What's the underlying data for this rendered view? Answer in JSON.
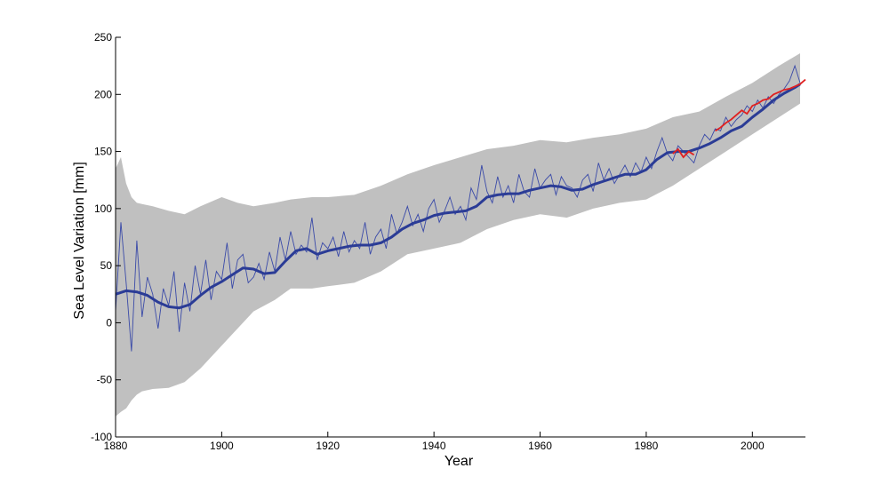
{
  "chart_data": {
    "type": "line",
    "xlabel": "Year",
    "ylabel": "Sea Level Variation [mm]",
    "xlim": [
      1880,
      2010
    ],
    "ylim": [
      -100,
      250
    ],
    "x_ticks": [
      1880,
      1900,
      1920,
      1940,
      1960,
      1980,
      2000
    ],
    "y_ticks": [
      -100,
      -50,
      0,
      50,
      100,
      150,
      200,
      250
    ],
    "grid": false,
    "legend": "none",
    "colors": {
      "band": "#c0c0c0",
      "smoothed": "#2b3c96",
      "annual": "#3a4aa8",
      "satellite": "#e02020"
    },
    "series": [
      {
        "role": "uncertainty-band",
        "x": [
          1880,
          1881,
          1882,
          1883,
          1884,
          1885,
          1887,
          1890,
          1893,
          1896,
          1900,
          1903,
          1906,
          1910,
          1913,
          1917,
          1920,
          1925,
          1930,
          1935,
          1940,
          1945,
          1950,
          1955,
          1960,
          1965,
          1970,
          1975,
          1980,
          1985,
          1990,
          1995,
          2000,
          2005,
          2009
        ],
        "lower": [
          -82,
          -78,
          -75,
          -68,
          -63,
          -60,
          -58,
          -57,
          -52,
          -40,
          -20,
          -5,
          10,
          20,
          30,
          30,
          32,
          35,
          45,
          60,
          65,
          70,
          82,
          90,
          95,
          92,
          100,
          105,
          108,
          120,
          135,
          150,
          165,
          180,
          192
        ],
        "upper": [
          135,
          145,
          122,
          110,
          105,
          104,
          102,
          98,
          95,
          102,
          110,
          105,
          102,
          105,
          108,
          110,
          110,
          112,
          120,
          130,
          138,
          145,
          152,
          155,
          160,
          158,
          162,
          165,
          170,
          180,
          185,
          198,
          210,
          225,
          236
        ]
      },
      {
        "role": "smoothed",
        "x": [
          1880,
          1882,
          1884,
          1886,
          1888,
          1890,
          1892,
          1894,
          1896,
          1898,
          1900,
          1902,
          1904,
          1906,
          1908,
          1910,
          1912,
          1914,
          1916,
          1918,
          1920,
          1922,
          1924,
          1926,
          1928,
          1930,
          1932,
          1934,
          1936,
          1938,
          1940,
          1942,
          1944,
          1946,
          1948,
          1950,
          1952,
          1954,
          1956,
          1958,
          1960,
          1962,
          1964,
          1966,
          1968,
          1970,
          1972,
          1974,
          1976,
          1978,
          1980,
          1982,
          1984,
          1986,
          1988,
          1990,
          1992,
          1994,
          1996,
          1998,
          2000,
          2002,
          2004,
          2006,
          2008,
          2009
        ],
        "values": [
          25,
          28,
          27,
          24,
          18,
          14,
          13,
          16,
          24,
          31,
          36,
          42,
          48,
          47,
          43,
          44,
          54,
          63,
          65,
          60,
          63,
          65,
          67,
          68,
          68,
          70,
          75,
          82,
          87,
          90,
          94,
          96,
          97,
          98,
          102,
          110,
          112,
          113,
          113,
          116,
          118,
          120,
          119,
          116,
          117,
          121,
          124,
          127,
          130,
          130,
          134,
          143,
          149,
          150,
          150,
          153,
          157,
          162,
          168,
          172,
          180,
          187,
          195,
          201,
          206,
          209
        ]
      },
      {
        "role": "annual",
        "x": [
          1880,
          1881,
          1882,
          1883,
          1884,
          1885,
          1886,
          1887,
          1888,
          1889,
          1890,
          1891,
          1892,
          1893,
          1894,
          1895,
          1896,
          1897,
          1898,
          1899,
          1900,
          1901,
          1902,
          1903,
          1904,
          1905,
          1906,
          1907,
          1908,
          1909,
          1910,
          1911,
          1912,
          1913,
          1914,
          1915,
          1916,
          1917,
          1918,
          1919,
          1920,
          1921,
          1922,
          1923,
          1924,
          1925,
          1926,
          1927,
          1928,
          1929,
          1930,
          1931,
          1932,
          1933,
          1934,
          1935,
          1936,
          1937,
          1938,
          1939,
          1940,
          1941,
          1942,
          1943,
          1944,
          1945,
          1946,
          1947,
          1948,
          1949,
          1950,
          1951,
          1952,
          1953,
          1954,
          1955,
          1956,
          1957,
          1958,
          1959,
          1960,
          1961,
          1962,
          1963,
          1964,
          1965,
          1966,
          1967,
          1968,
          1969,
          1970,
          1971,
          1972,
          1973,
          1974,
          1975,
          1976,
          1977,
          1978,
          1979,
          1980,
          1981,
          1982,
          1983,
          1984,
          1985,
          1986,
          1987,
          1988,
          1989,
          1990,
          1991,
          1992,
          1993,
          1994,
          1995,
          1996,
          1997,
          1998,
          1999,
          2000,
          2001,
          2002,
          2003,
          2004,
          2005,
          2006,
          2007,
          2008,
          2009
        ],
        "values": [
          10,
          88,
          35,
          -25,
          72,
          5,
          40,
          25,
          -5,
          30,
          15,
          45,
          -8,
          35,
          10,
          50,
          25,
          55,
          20,
          45,
          38,
          70,
          30,
          55,
          60,
          35,
          40,
          52,
          38,
          62,
          45,
          75,
          55,
          80,
          60,
          68,
          62,
          92,
          55,
          70,
          65,
          75,
          58,
          80,
          62,
          72,
          65,
          88,
          60,
          75,
          82,
          65,
          95,
          78,
          88,
          102,
          85,
          95,
          80,
          100,
          108,
          88,
          98,
          110,
          95,
          102,
          90,
          118,
          108,
          138,
          115,
          105,
          128,
          110,
          120,
          105,
          130,
          115,
          110,
          135,
          118,
          125,
          130,
          112,
          128,
          120,
          118,
          110,
          125,
          130,
          115,
          140,
          125,
          135,
          122,
          130,
          138,
          128,
          140,
          132,
          145,
          135,
          150,
          162,
          148,
          142,
          155,
          150,
          145,
          140,
          155,
          165,
          160,
          170,
          168,
          180,
          172,
          178,
          182,
          190,
          185,
          195,
          188,
          198,
          192,
          200,
          205,
          212,
          225,
          210
        ]
      },
      {
        "role": "satellite",
        "x": [
          1985,
          1986,
          1987,
          1988,
          1989,
          1993,
          1994,
          1995,
          1996,
          1997,
          1998,
          1999,
          2000,
          2001,
          2002,
          2003,
          2004,
          2005,
          2006,
          2007,
          2008,
          2009,
          2010
        ],
        "values": [
          148,
          152,
          145,
          150,
          147,
          168,
          171,
          175,
          178,
          182,
          186,
          183,
          190,
          192,
          195,
          196,
          200,
          202,
          204,
          205,
          207,
          209,
          213
        ]
      }
    ]
  }
}
